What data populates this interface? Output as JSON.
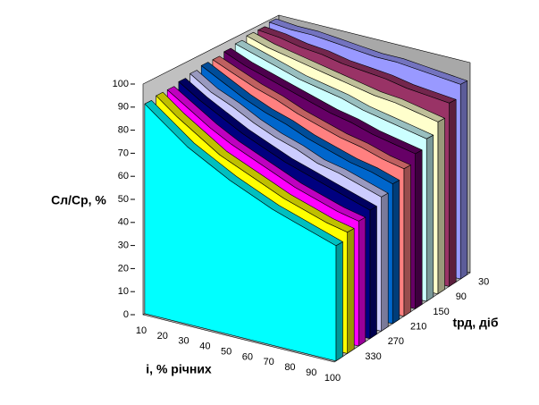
{
  "chart_data": {
    "type": "area3d",
    "ylabel": "Cл/Cр, %",
    "xlabel": "i, % річних",
    "zlabel": "tрд, діб",
    "categories": [
      10,
      20,
      30,
      40,
      50,
      60,
      70,
      80,
      90,
      100
    ],
    "ylim": [
      0,
      100
    ],
    "yticks": [
      0,
      10,
      20,
      30,
      40,
      50,
      60,
      70,
      80,
      90,
      100
    ],
    "series": [
      {
        "name": "30",
        "color": "#9999ff",
        "values": [
          99,
          98,
          98,
          97,
          96,
          95,
          95,
          94,
          93,
          92
        ]
      },
      {
        "name": null,
        "color": "#993366",
        "values": [
          98,
          97,
          95,
          94,
          92,
          91,
          90,
          88,
          87,
          86
        ]
      },
      {
        "name": "90",
        "color": "#ffffcc",
        "values": [
          98,
          95,
          93,
          91,
          89,
          87,
          85,
          84,
          82,
          80
        ]
      },
      {
        "name": null,
        "color": "#ccffff",
        "values": [
          97,
          94,
          91,
          88,
          86,
          84,
          81,
          79,
          77,
          75
        ]
      },
      {
        "name": "150",
        "color": "#660066",
        "values": [
          96,
          92,
          89,
          86,
          83,
          80,
          78,
          75,
          73,
          71
        ]
      },
      {
        "name": null,
        "color": "#ff8080",
        "values": [
          95,
          91,
          87,
          84,
          80,
          77,
          74,
          72,
          69,
          67
        ]
      },
      {
        "name": "210",
        "color": "#0066cc",
        "values": [
          95,
          90,
          85,
          81,
          78,
          74,
          71,
          68,
          66,
          63
        ]
      },
      {
        "name": null,
        "color": "#ccccff",
        "values": [
          94,
          88,
          84,
          79,
          75,
          72,
          68,
          66,
          63,
          60
        ]
      },
      {
        "name": "270",
        "color": "#000080",
        "values": [
          93,
          87,
          82,
          77,
          73,
          69,
          66,
          63,
          60,
          57
        ]
      },
      {
        "name": null,
        "color": "#ff00ff",
        "values": [
          92,
          86,
          80,
          75,
          71,
          67,
          63,
          60,
          57,
          55
        ]
      },
      {
        "name": "330",
        "color": "#ffff00",
        "values": [
          92,
          85,
          79,
          73,
          69,
          65,
          61,
          58,
          55,
          53
        ]
      },
      {
        "name": null,
        "color": "#00ffff",
        "values": [
          91,
          84,
          77,
          72,
          67,
          63,
          59,
          56,
          53,
          50
        ]
      }
    ]
  }
}
